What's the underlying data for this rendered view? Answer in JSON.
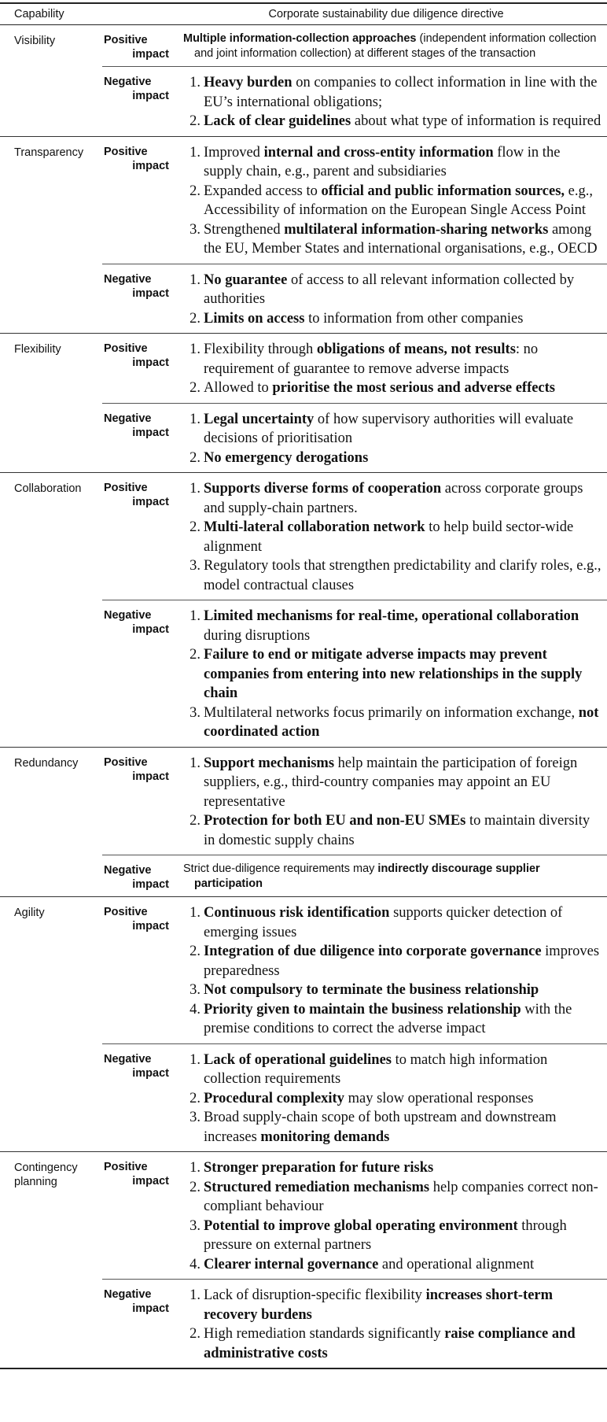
{
  "header": {
    "col1": "Capability",
    "col2": "Corporate sustainability due diligence directive"
  },
  "labels": {
    "positive": [
      "Positive",
      "impact"
    ],
    "negative": [
      "Negative",
      "impact"
    ]
  },
  "capabilities": [
    {
      "name": "Visibility",
      "positive": {
        "para": [
          "",
          "Multiple information-collection approaches",
          " (independent information collection and joint information collection) at different stages of the transaction"
        ]
      },
      "negative": {
        "items": [
          [
            "",
            "Heavy burden",
            " on companies to collect information in line with the EU’s international obligations;"
          ],
          [
            "",
            "Lack of clear guidelines",
            " about what type of information is required"
          ]
        ]
      }
    },
    {
      "name": "Transparency",
      "positive": {
        "items": [
          [
            "Improved ",
            "internal and cross-entity information",
            " flow in the supply chain, e.g., parent and subsidiaries"
          ],
          [
            "Expanded access to ",
            "official and public information sources,",
            " e.g., Accessibility of information on the European Single Access Point"
          ],
          [
            "Strengthened ",
            "multilateral information-sharing networks",
            " among the EU, Member States and international organisations, e.g., OECD"
          ]
        ]
      },
      "negative": {
        "items": [
          [
            "",
            "No guarantee",
            " of access to all relevant information collected by authorities"
          ],
          [
            "",
            "Limits on access",
            " to information from other companies"
          ]
        ]
      }
    },
    {
      "name": "Flexibility",
      "positive": {
        "items": [
          [
            "Flexibility through ",
            "obligations of means, not results",
            ": no requirement of guarantee to remove adverse impacts"
          ],
          [
            "Allowed to ",
            "prioritise the most serious and adverse effects"
          ]
        ]
      },
      "negative": {
        "items": [
          [
            "",
            "Legal uncertainty",
            " of how supervisory authorities will evaluate decisions of prioritisation"
          ],
          [
            "",
            "No emergency derogations"
          ]
        ]
      }
    },
    {
      "name": "Collaboration",
      "positive": {
        "items": [
          [
            "",
            "Supports diverse forms of cooperation",
            " across corporate groups and supply-chain partners."
          ],
          [
            "",
            "Multi-lateral collaboration network",
            " to help build sector-wide alignment"
          ],
          [
            "Regulatory tools that strengthen predictability and clarify roles, e.g., model contractual clauses"
          ]
        ]
      },
      "negative": {
        "items": [
          [
            "",
            "Limited mechanisms for real-time, operational collaboration",
            " during disruptions"
          ],
          [
            "",
            "Failure to end or mitigate adverse impacts may prevent companies from entering into new relationships in the supply chain"
          ],
          [
            "Multilateral networks focus primarily on information exchange, ",
            "not coordinated action"
          ]
        ]
      }
    },
    {
      "name": "Redundancy",
      "positive": {
        "items": [
          [
            "",
            "Support mechanisms",
            " help maintain the participation of foreign suppliers, e.g., third-country companies may appoint an EU representative"
          ],
          [
            "",
            "Protection for both EU and non-EU SMEs",
            " to maintain diversity in domestic supply chains"
          ]
        ]
      },
      "negative": {
        "para": [
          "Strict due-diligence requirements may ",
          "indirectly discourage supplier participation"
        ]
      }
    },
    {
      "name": "Agility",
      "positive": {
        "items": [
          [
            "",
            "Continuous risk identification",
            " supports quicker detection of emerging issues"
          ],
          [
            "",
            "Integration of due diligence into corporate governance",
            " improves preparedness"
          ],
          [
            "",
            "Not compulsory to terminate the business relationship"
          ],
          [
            "",
            "Priority given to maintain the business relationship",
            " with the premise conditions to correct the adverse impact"
          ]
        ]
      },
      "negative": {
        "items": [
          [
            "",
            "Lack of operational guidelines",
            " to match high information collection requirements"
          ],
          [
            "",
            "Procedural complexity",
            " may slow operational responses"
          ],
          [
            "Broad supply-chain scope of both upstream and downstream increases ",
            "monitoring demands"
          ]
        ]
      }
    },
    {
      "name": "Contingency planning",
      "positive": {
        "items": [
          [
            "",
            "Stronger preparation for future risks"
          ],
          [
            "",
            "Structured remediation mechanisms",
            " help companies correct non-compliant behaviour"
          ],
          [
            "",
            "Potential to improve global operating environment",
            " through pressure on external partners"
          ],
          [
            "",
            "Clearer internal governance",
            " and operational alignment"
          ]
        ]
      },
      "negative": {
        "items": [
          [
            "Lack of disruption-specific flexibility ",
            "increases short-term recovery burdens"
          ],
          [
            "High remediation standards significantly ",
            "raise compliance and administrative costs"
          ]
        ]
      }
    }
  ]
}
